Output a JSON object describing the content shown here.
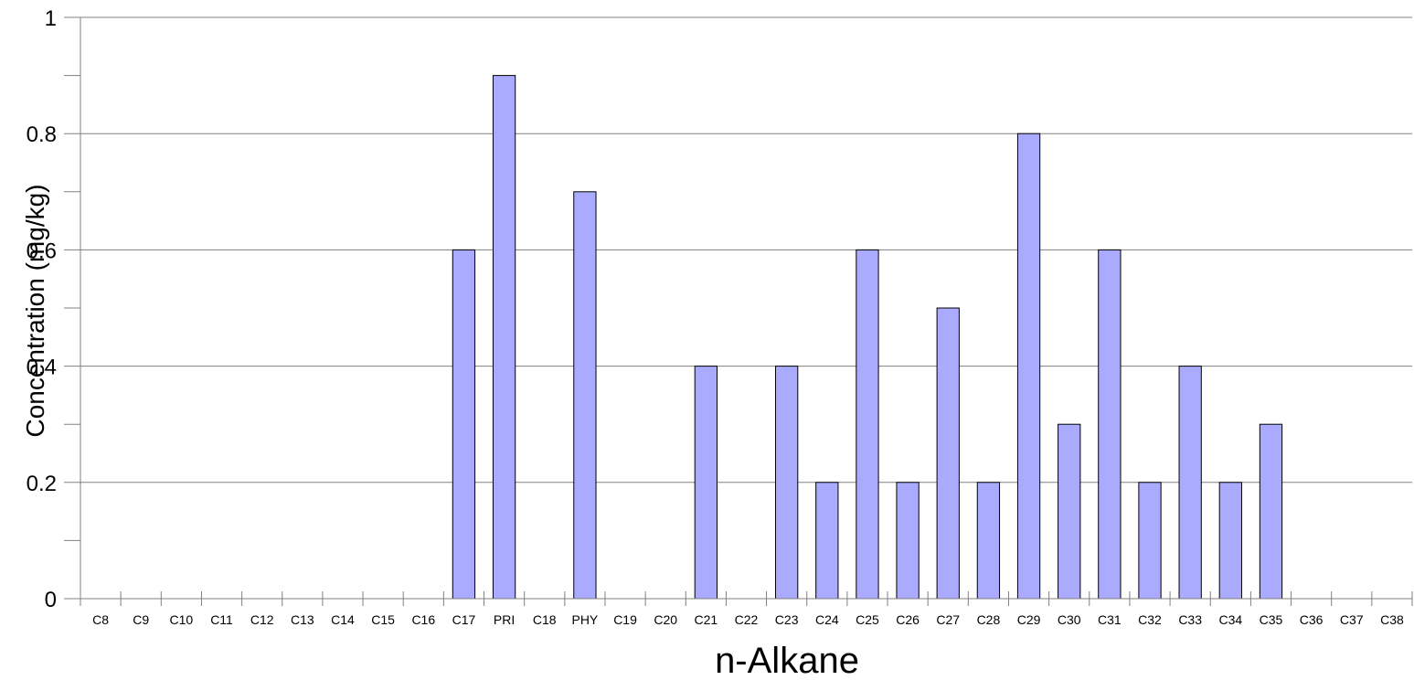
{
  "chart_data": {
    "type": "bar",
    "xlabel": "n-Alkane",
    "ylabel": "Concentration (mg/kg)",
    "ylim": [
      0,
      1
    ],
    "y_ticks": [
      0,
      0.2,
      0.4,
      0.6,
      0.8,
      1
    ],
    "y_tick_labels": [
      "0",
      "0.2",
      "0.4",
      "0.6",
      "0.8",
      "1"
    ],
    "grid": true,
    "bar_color": "#aaaaff",
    "categories": [
      "C8",
      "C9",
      "C10",
      "C11",
      "C12",
      "C13",
      "C14",
      "C15",
      "C16",
      "C17",
      "PRI",
      "C18",
      "PHY",
      "C19",
      "C20",
      "C21",
      "C22",
      "C23",
      "C24",
      "C25",
      "C26",
      "C27",
      "C28",
      "C29",
      "C30",
      "C31",
      "C32",
      "C33",
      "C34",
      "C35",
      "C36",
      "C37",
      "C38"
    ],
    "values": [
      0,
      0,
      0,
      0,
      0,
      0,
      0,
      0,
      0,
      0.6,
      0.9,
      0,
      0.7,
      0,
      0,
      0.4,
      0,
      0.4,
      0.2,
      0.6,
      0.2,
      0.5,
      0.2,
      0.8,
      0.3,
      0.6,
      0.2,
      0.4,
      0.2,
      0.3,
      0,
      0,
      0
    ]
  }
}
